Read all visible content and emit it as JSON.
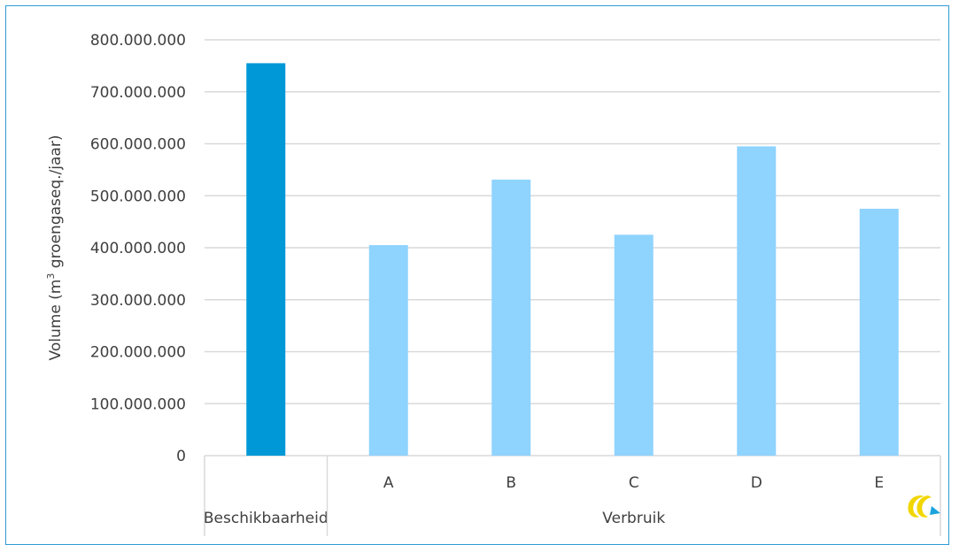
{
  "chart_data": {
    "type": "bar",
    "categories": [
      "",
      "A",
      "B",
      "C",
      "D",
      "E"
    ],
    "groups": [
      {
        "label": "Beschikbaarheid",
        "categories": [
          ""
        ]
      },
      {
        "label": "Verbruik",
        "categories": [
          "A",
          "B",
          "C",
          "D",
          "E"
        ]
      }
    ],
    "values": [
      755000000,
      405000000,
      531000000,
      425000000,
      595000000,
      475000000
    ],
    "bar_colors": [
      "#0098d6",
      "#8fd3ff",
      "#8fd3ff",
      "#8fd3ff",
      "#8fd3ff",
      "#8fd3ff"
    ],
    "yticks": [
      0,
      100000000,
      200000000,
      300000000,
      400000000,
      500000000,
      600000000,
      700000000,
      800000000
    ],
    "ytick_labels": [
      "0",
      "100.000.000",
      "200.000.000",
      "300.000.000",
      "400.000.000",
      "500.000.000",
      "600.000.000",
      "700.000.000",
      "800.000.000"
    ],
    "ylim": [
      0,
      800000000
    ],
    "ylabel_prefix": "Volume (m",
    "ylabel_superscript": "3",
    "ylabel_suffix": " groengaseq./jaar)",
    "xlabel": "",
    "title": "",
    "grid": "horizontal",
    "gridline_color": "#d9d9d9"
  },
  "frame": {
    "border_color": "#2e9bd6"
  },
  "logo": {
    "name": "ce-delft-logo-icon",
    "colors": [
      "#f2d600",
      "#1aa3dd"
    ]
  }
}
